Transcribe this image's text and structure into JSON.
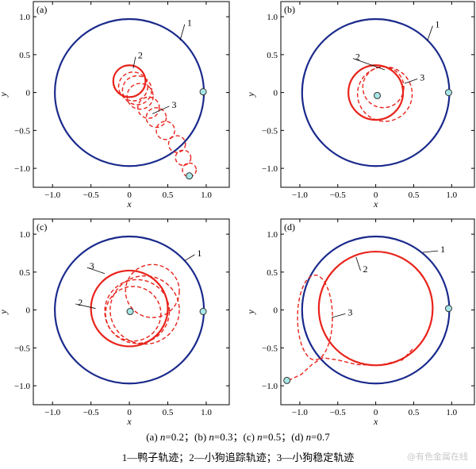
{
  "colors": {
    "duck": "#1a2a8c",
    "dog": "#e8231b",
    "marker_fill": "#a7e6e6",
    "axis": "#000000"
  },
  "caption": {
    "line1_parts": [
      {
        "t": "(a) "
      },
      {
        "t": "n",
        "i": true
      },
      {
        "t": "=0.2；(b) "
      },
      {
        "t": "n",
        "i": true
      },
      {
        "t": "=0.3；(c) "
      },
      {
        "t": "n",
        "i": true
      },
      {
        "t": "=0.5；(d) "
      },
      {
        "t": "n",
        "i": true
      },
      {
        "t": "=0.7"
      }
    ],
    "line2": "1—鸭子轨迹；2—小狗追踪轨迹；3—小狗稳定轨迹"
  },
  "watermark": "@有色金属在线",
  "chart_data": [
    {
      "type": "line",
      "panel_label": "(a)",
      "n": 0.2,
      "xlabel": "x",
      "ylabel": "y",
      "xlim": [
        -1.25,
        1.3
      ],
      "ylim": [
        -1.25,
        1.2
      ],
      "xticks": [
        -1.0,
        -0.5,
        0,
        0.5,
        1.0
      ],
      "xtick_labels": [
        "−1.0",
        "−0.5",
        "0",
        "0.5",
        "1.0"
      ],
      "yticks": [
        -1.0,
        -0.5,
        0,
        0.5,
        1.0
      ],
      "ytick_labels": [
        "−1.0",
        "−0.5",
        "0",
        "0.5",
        "1.0"
      ],
      "duck_circle": {
        "cx": 0,
        "cy": 0,
        "r": 0.97
      },
      "chase_circle": {
        "cx": 0,
        "cy": 0.15,
        "r": 0.21
      },
      "dashed_loops": [
        [
          0.05,
          0.08,
          0.19
        ],
        [
          0.1,
          0.03,
          0.19
        ],
        [
          0.14,
          -0.05,
          0.17
        ],
        [
          0.25,
          -0.2,
          0.14
        ],
        [
          0.35,
          -0.33,
          0.13
        ],
        [
          0.47,
          -0.5,
          0.12
        ],
        [
          0.62,
          -0.68,
          0.11
        ],
        [
          0.7,
          -0.86,
          0.1
        ],
        [
          0.78,
          -1.02,
          0.09
        ]
      ],
      "duck_marker": [
        0.96,
        0.01
      ],
      "dog_marker": [
        0.78,
        -1.1
      ],
      "annotations": [
        {
          "text": "1",
          "target": [
            0.66,
            0.69
          ],
          "label": [
            0.72,
            0.9
          ]
        },
        {
          "text": "2",
          "target": [
            0.05,
            0.32
          ],
          "label": [
            0.08,
            0.47
          ]
        },
        {
          "text": "3",
          "target": [
            0.3,
            -0.28
          ],
          "label": [
            0.52,
            -0.18
          ]
        }
      ]
    },
    {
      "type": "line",
      "panel_label": "(b)",
      "n": 0.3,
      "xlabel": "x",
      "ylabel": "y",
      "xlim": [
        -1.25,
        1.3
      ],
      "ylim": [
        -1.25,
        1.2
      ],
      "xticks": [
        -1.0,
        -0.5,
        0,
        0.5,
        1.0
      ],
      "xtick_labels": [
        "−1.0",
        "−0.5",
        "0",
        "0.5",
        "1.0"
      ],
      "yticks": [
        -1.0,
        -0.5,
        0,
        0.5,
        1.0
      ],
      "ytick_labels": [
        "−1.0",
        "−0.5",
        "0",
        "0.5",
        "1.0"
      ],
      "duck_circle": {
        "cx": 0,
        "cy": 0,
        "r": 0.97
      },
      "chase_circle": {
        "cx": 0,
        "cy": 0.0,
        "r": 0.36
      },
      "dashed_loops": [
        [
          0.12,
          -0.02,
          0.36
        ],
        [
          0.1,
          0.07,
          0.27
        ]
      ],
      "duck_marker": [
        0.96,
        0.0
      ],
      "dog_marker": [
        0.02,
        -0.04
      ],
      "annotations": [
        {
          "text": "1",
          "target": [
            0.68,
            0.68
          ],
          "label": [
            0.75,
            0.88
          ]
        },
        {
          "text": "2",
          "target": [
            0.12,
            0.3
          ],
          "label": [
            -0.3,
            0.45
          ]
        },
        {
          "text": "3",
          "target": [
            0.38,
            0.12
          ],
          "label": [
            0.55,
            0.18
          ]
        }
      ]
    },
    {
      "type": "line",
      "panel_label": "(c)",
      "n": 0.5,
      "xlabel": "x",
      "ylabel": "y",
      "xlim": [
        -1.25,
        1.3
      ],
      "ylim": [
        -1.25,
        1.2
      ],
      "xticks": [
        -1.0,
        -0.5,
        0,
        0.5,
        1.0
      ],
      "xtick_labels": [
        "−1.0",
        "−0.5",
        "0",
        "0.5",
        "1.0"
      ],
      "yticks": [
        -1.0,
        -0.5,
        0,
        0.5,
        1.0
      ],
      "ytick_labels": [
        "−1.0",
        "−0.5",
        "0",
        "0.5",
        "1.0"
      ],
      "duck_circle": {
        "cx": 0,
        "cy": 0,
        "r": 0.97
      },
      "chase_circle": {
        "cx": 0,
        "cy": 0.02,
        "r": 0.5
      },
      "dashed_loops": [
        [
          0.1,
          -0.02,
          0.42
        ],
        [
          0.05,
          -0.05,
          0.36
        ],
        [
          0.3,
          0.25,
          0.35
        ],
        [
          0.2,
          0.0,
          0.45
        ]
      ],
      "duck_marker": [
        0.96,
        -0.02
      ],
      "dog_marker": [
        0.01,
        -0.02
      ],
      "annotations": [
        {
          "text": "1",
          "target": [
            0.72,
            0.65
          ],
          "label": [
            0.85,
            0.73
          ]
        },
        {
          "text": "2",
          "target": [
            -0.44,
            0.02
          ],
          "label": [
            -0.7,
            0.08
          ]
        },
        {
          "text": "3",
          "target": [
            -0.32,
            0.48
          ],
          "label": [
            -0.55,
            0.56
          ]
        }
      ]
    },
    {
      "type": "line",
      "panel_label": "(d)",
      "n": 0.7,
      "xlabel": "x",
      "ylabel": "y",
      "xlim": [
        -1.25,
        1.3
      ],
      "ylim": [
        -1.25,
        1.2
      ],
      "xticks": [
        -1.0,
        -0.5,
        0,
        0.5,
        1.0
      ],
      "xtick_labels": [
        "−1.0",
        "−0.5",
        "0",
        "0.5",
        "1.0"
      ],
      "yticks": [
        -1.0,
        -0.5,
        0,
        0.5,
        1.0
      ],
      "ytick_labels": [
        "−1.0",
        "−0.5",
        "0",
        "0.5",
        "1.0"
      ],
      "duck_circle": {
        "cx": 0,
        "cy": 0,
        "r": 0.97
      },
      "chase_circle": {
        "cx": 0,
        "cy": 0.02,
        "r": 0.75
      },
      "dashed_loops": [
        [
          -0.8,
          -0.1,
          0.56,
          0.23
        ]
      ],
      "dashed_tail": [
        [
          -1.15,
          -0.93
        ],
        [
          -0.98,
          -0.85
        ],
        [
          -0.84,
          -0.72
        ],
        [
          -0.7,
          -0.63
        ],
        [
          -0.5,
          -0.66
        ],
        [
          -0.25,
          -0.72
        ],
        [
          0.05,
          -0.73
        ],
        [
          0.35,
          -0.66
        ],
        [
          0.5,
          -0.5
        ]
      ],
      "duck_marker": [
        0.96,
        0.02
      ],
      "dog_marker": [
        -1.17,
        -0.93
      ],
      "annotations": [
        {
          "text": "1",
          "target": [
            0.62,
            0.76
          ],
          "label": [
            0.82,
            0.78
          ]
        },
        {
          "text": "2",
          "target": [
            -0.26,
            0.7
          ],
          "label": [
            -0.2,
            0.52
          ]
        },
        {
          "text": "3",
          "target": [
            -0.58,
            -0.1
          ],
          "label": [
            -0.4,
            -0.05
          ]
        }
      ]
    }
  ]
}
